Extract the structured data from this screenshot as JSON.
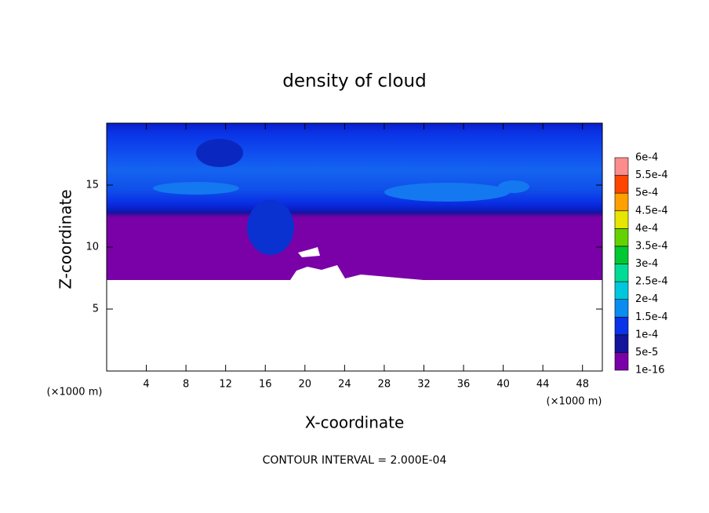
{
  "chart_data": {
    "type": "contour",
    "title": "density of cloud",
    "x_label": "X-coordinate",
    "y_label": "Z-coordinate",
    "y_unit": "(×1000 m)",
    "x_unit": "(×1000 m)",
    "xlim": [
      0,
      50
    ],
    "xticks": [
      4,
      8,
      12,
      16,
      20,
      24,
      28,
      32,
      36,
      40,
      44,
      48
    ],
    "ylim": [
      0,
      20
    ],
    "yticks": [
      5,
      10,
      15
    ],
    "footer": "CONTOUR INTERVAL = 2.000E-04",
    "colorbar": {
      "levels": [
        {
          "value": 1e-16,
          "label": "1e-16"
        },
        {
          "value": 5e-05,
          "label": "5e-5"
        },
        {
          "value": 0.0001,
          "label": "1e-4"
        },
        {
          "value": 0.00015,
          "label": "1.5e-4"
        },
        {
          "value": 0.0002,
          "label": "2e-4"
        },
        {
          "value": 0.00025,
          "label": "2.5e-4"
        },
        {
          "value": 0.0003,
          "label": "3e-4"
        },
        {
          "value": 0.00035,
          "label": "3.5e-4"
        },
        {
          "value": 0.0004,
          "label": "4e-4"
        },
        {
          "value": 0.00045,
          "label": "4.5e-4"
        },
        {
          "value": 0.0005,
          "label": "5e-4"
        },
        {
          "value": 0.00055,
          "label": "5.5e-4"
        },
        {
          "value": 0.0006,
          "label": "6e-4"
        }
      ],
      "colors": [
        "#7a00a8",
        "#14149a",
        "#0a32e6",
        "#0a8cf0",
        "#00c8dc",
        "#00dc96",
        "#00c832",
        "#64d200",
        "#e6e600",
        "#ffa000",
        "#ff4600",
        "#ff8c8c"
      ]
    }
  }
}
